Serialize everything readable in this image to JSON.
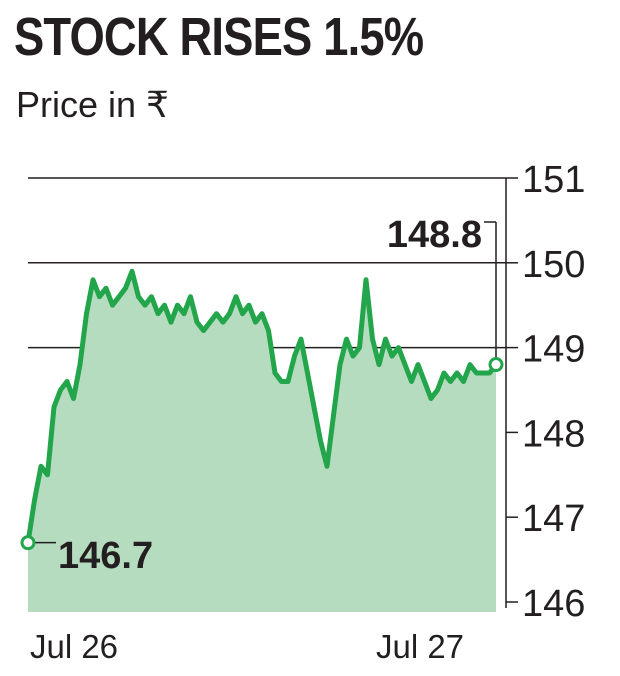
{
  "header": {
    "title": "STOCK RISES 1.5%",
    "subtitle": "Price in ₹"
  },
  "colors": {
    "line": "#23a54b",
    "area": "#b6dcc0",
    "grid": "#231f20",
    "text": "#231f20"
  },
  "chart_data": {
    "type": "area",
    "title": "STOCK RISES 1.5%",
    "subtitle": "Price in ₹",
    "xlabel": "",
    "ylabel": "",
    "y_axis_position": "right",
    "ylim": [
      146,
      151
    ],
    "y_ticks": [
      151,
      150,
      149,
      148,
      147,
      146
    ],
    "x_ticks": [
      "Jul 26",
      "Jul 27"
    ],
    "grid": "horizontal lines at 151, 150, 149",
    "series": [
      {
        "values": [
          146.7,
          147.2,
          147.6,
          147.5,
          148.3,
          148.5,
          148.6,
          148.4,
          148.8,
          149.4,
          149.8,
          149.6,
          149.7,
          149.5,
          149.6,
          149.7,
          149.9,
          149.6,
          149.5,
          149.6,
          149.4,
          149.5,
          149.3,
          149.5,
          149.4,
          149.6,
          149.3,
          149.2,
          149.3,
          149.4,
          149.3,
          149.4,
          149.6,
          149.4,
          149.5,
          149.3,
          149.4,
          149.2,
          148.7,
          148.6,
          148.6,
          148.9,
          149.1,
          148.7,
          148.3,
          147.9,
          147.6,
          148.2,
          148.8,
          149.1,
          148.9,
          149.0,
          149.8,
          149.1,
          148.8,
          149.1,
          148.9,
          149.0,
          148.8,
          148.6,
          148.8,
          148.6,
          148.4,
          148.5,
          148.7,
          148.6,
          148.7,
          148.6,
          148.8,
          148.7,
          148.7,
          148.7,
          148.8
        ]
      }
    ],
    "annotations": [
      {
        "text": "146.7",
        "point": "start"
      },
      {
        "text": "148.8",
        "point": "end"
      }
    ]
  }
}
